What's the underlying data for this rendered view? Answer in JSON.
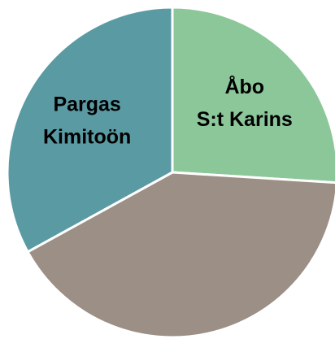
{
  "chart_data": {
    "type": "pie",
    "categories": [
      [
        "Åbo",
        "S:t Karins"
      ],
      null,
      [
        "Pargas",
        "Kimitoön"
      ]
    ],
    "values": [
      26,
      41,
      33
    ],
    "colors": [
      "#8cc79a",
      "#9b8f86",
      "#5a9aa3"
    ],
    "start_angle": 0,
    "direction": "clockwise"
  }
}
